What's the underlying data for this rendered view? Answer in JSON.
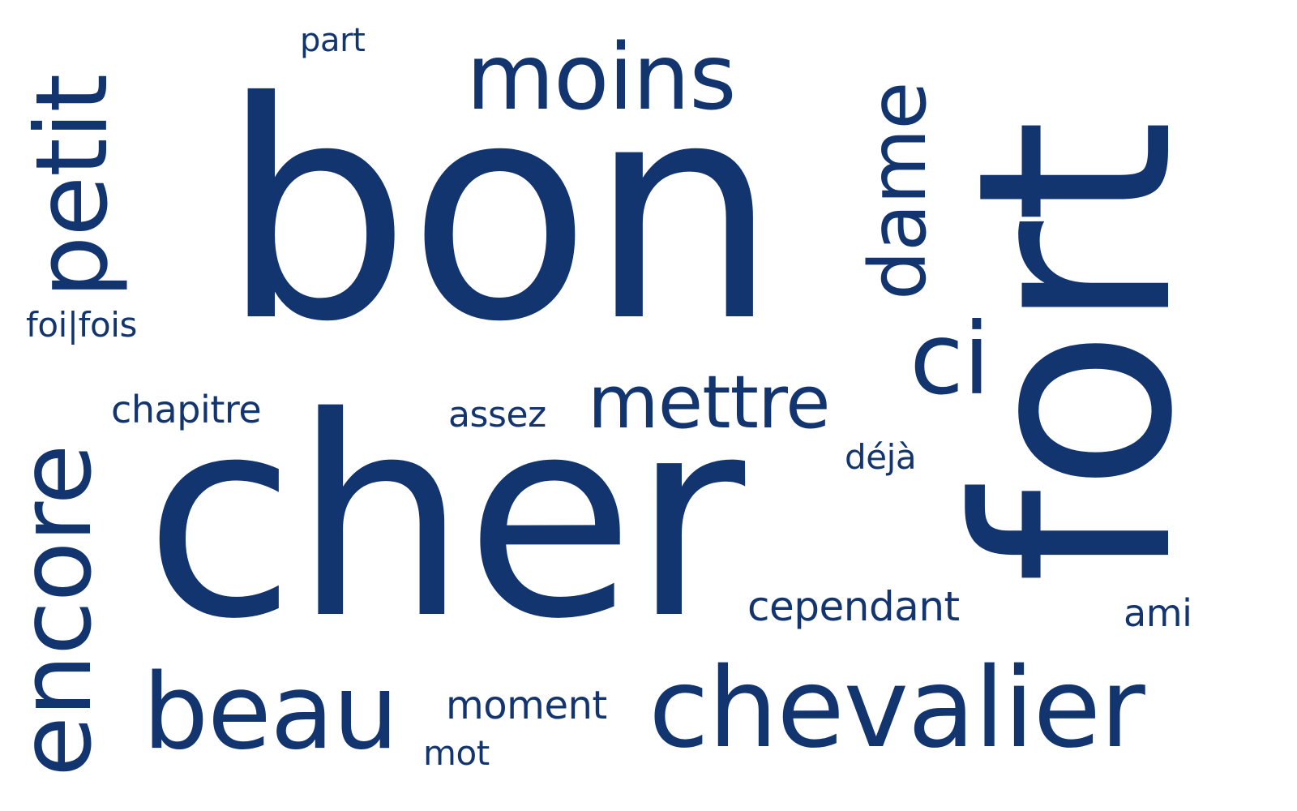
{
  "color": "#13356f",
  "words": {
    "bon": "bon",
    "cher": "cher",
    "fort": "fort",
    "moins": "moins",
    "petit": "petit",
    "encore": "encore",
    "dame": "dame",
    "mettre": "mettre",
    "ci": "ci",
    "chevalier": "chevalier",
    "beau": "beau",
    "part": "part",
    "foi_fois": "foi|fois",
    "chapitre": "chapitre",
    "assez": "assez",
    "deja": "déjà",
    "cependant": "cependant",
    "ami": "ami",
    "moment": "moment",
    "mot": "mot"
  }
}
